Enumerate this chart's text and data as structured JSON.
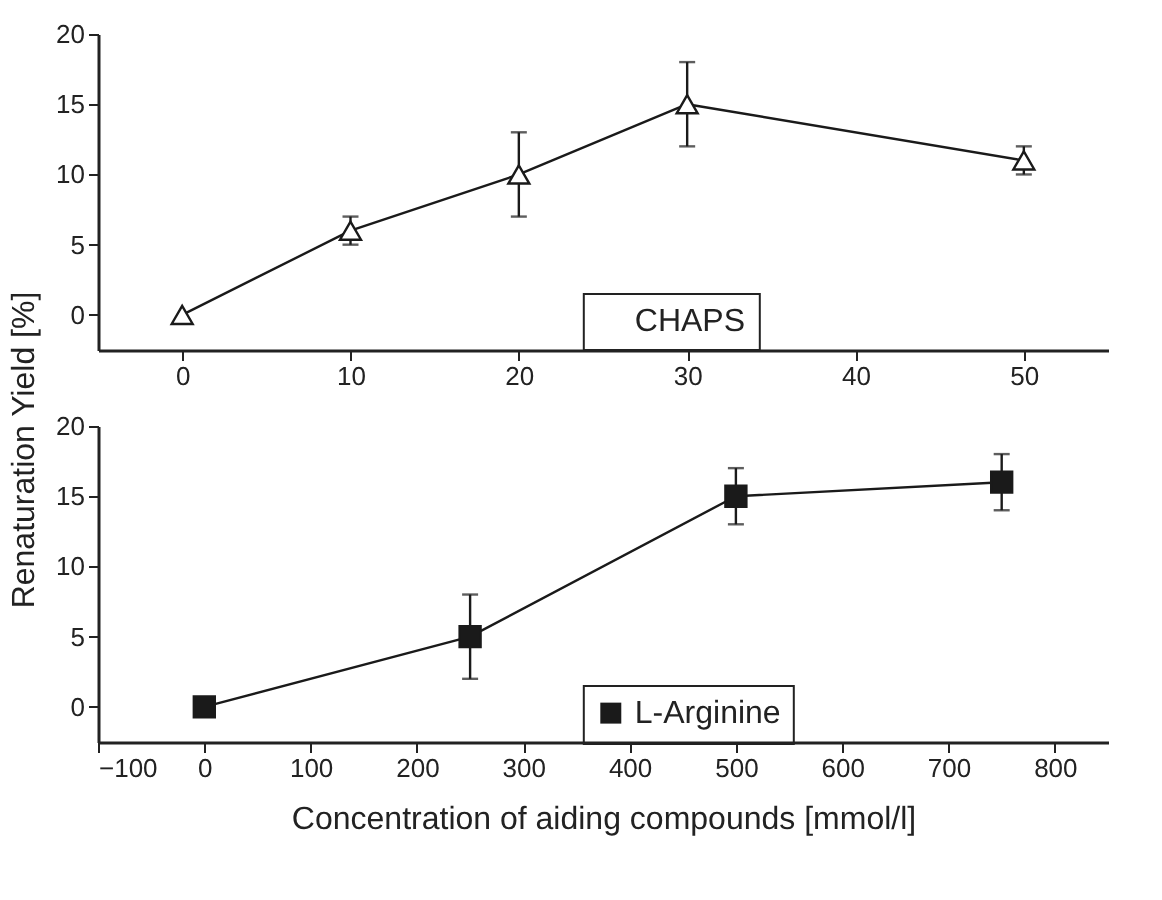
{
  "chart_data": [
    {
      "type": "line",
      "ylabel": "Renaturation Yield [%]",
      "x": [
        0,
        10,
        20,
        30,
        50
      ],
      "xlim": [
        -5,
        55
      ],
      "xticks": [
        0,
        10,
        20,
        30,
        40,
        50
      ],
      "ylim": [
        -2.5,
        20
      ],
      "yticks": [
        0,
        5,
        10,
        15,
        20
      ],
      "marker": "triangle",
      "legend": "bottom",
      "grid": false,
      "series": [
        {
          "name": "CHAPS",
          "color": "#1a1a1a",
          "values": [
            0,
            6,
            10,
            15,
            11
          ],
          "errors": [
            null,
            1,
            3,
            3,
            1
          ]
        }
      ]
    },
    {
      "type": "line",
      "xlabel": "Concentration of aiding compounds [mmol/l]",
      "x": [
        0,
        250,
        500,
        750
      ],
      "xlim": [
        -100,
        850
      ],
      "xticks": [
        -100,
        0,
        100,
        200,
        300,
        400,
        500,
        600,
        700,
        800
      ],
      "ylim": [
        -2.5,
        20
      ],
      "yticks": [
        0,
        5,
        10,
        15,
        20
      ],
      "marker": "square",
      "legend": "bottom",
      "grid": false,
      "series": [
        {
          "name": "L-Arginine",
          "color": "#1a1a1a",
          "values": [
            0,
            5,
            15,
            16
          ],
          "errors": [
            null,
            3,
            2,
            2
          ]
        }
      ]
    }
  ]
}
